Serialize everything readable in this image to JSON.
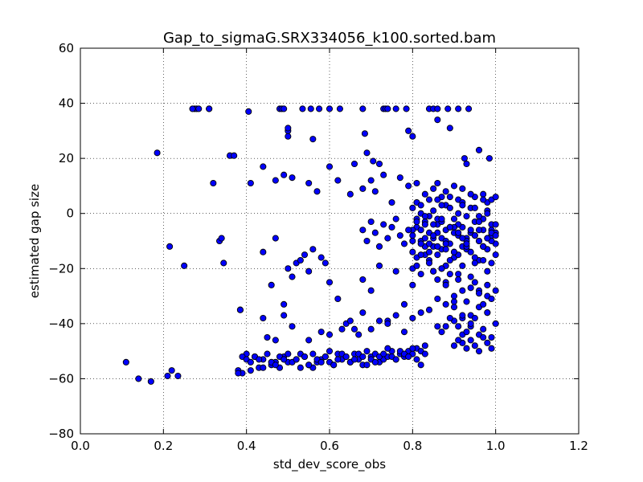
{
  "chart_data": {
    "type": "scatter",
    "title": "Gap_to_sigmaG.SRX334056_k100.sorted.bam",
    "xlabel": "std_dev_score_obs",
    "ylabel": "estimated gap size",
    "xlim": [
      0.0,
      1.2
    ],
    "ylim": [
      -80,
      60
    ],
    "xticks": [
      "0.0",
      "0.2",
      "0.4",
      "0.6",
      "0.8",
      "1.0",
      "1.2"
    ],
    "yticks": [
      "−80",
      "−60",
      "−40",
      "−20",
      "0",
      "20",
      "40",
      "60"
    ],
    "grid": true,
    "marker_color": "#0000ff",
    "marker_edge": "#000000",
    "series": [
      {
        "x": [
          0.11,
          0.14,
          0.17,
          0.21,
          0.22,
          0.235,
          0.275,
          0.28,
          0.31,
          0.36,
          0.385,
          0.38,
          0.39,
          0.4,
          0.41,
          0.42,
          0.43,
          0.44,
          0.46,
          0.47,
          0.48,
          0.49,
          0.5,
          0.52,
          0.53,
          0.54,
          0.55,
          0.56,
          0.57,
          0.58,
          0.59,
          0.6,
          0.61,
          0.62,
          0.63,
          0.64,
          0.65,
          0.66,
          0.67,
          0.68,
          0.69,
          0.7,
          0.71,
          0.72,
          0.73,
          0.74,
          0.75,
          0.76,
          0.77,
          0.78,
          0.79,
          0.8,
          0.81,
          0.82,
          0.83,
          0.185,
          0.27,
          0.285,
          0.31,
          0.37,
          0.405,
          0.48,
          0.485,
          0.49,
          0.5,
          0.535,
          0.555,
          0.575,
          0.6,
          0.625,
          0.68,
          0.73,
          0.735,
          0.74,
          0.76,
          0.785,
          0.84,
          0.85,
          0.86,
          0.885,
          0.91,
          0.935,
          0.5,
          0.5,
          0.56,
          0.66,
          0.685,
          0.69,
          0.705,
          0.72,
          0.79,
          0.8,
          0.86,
          0.89,
          0.925,
          0.93,
          0.96,
          0.985,
          0.32,
          0.41,
          0.44,
          0.47,
          0.49,
          0.51,
          0.55,
          0.57,
          0.6,
          0.62,
          0.65,
          0.68,
          0.7,
          0.71,
          0.73,
          0.75,
          0.77,
          0.79,
          0.81,
          0.83,
          0.85,
          0.86,
          0.87,
          0.88,
          0.9,
          0.91,
          0.92,
          0.95,
          0.97,
          0.98,
          0.99,
          0.215,
          0.25,
          0.335,
          0.34,
          0.345,
          0.385,
          0.44,
          0.45,
          0.47,
          0.49,
          0.5,
          0.51,
          0.52,
          0.53,
          0.54,
          0.55,
          0.56,
          0.58,
          0.59,
          0.6,
          0.62,
          0.64,
          0.66,
          0.67,
          0.68,
          0.7,
          0.72,
          0.74,
          0.76,
          0.78,
          0.8,
          0.82,
          0.84,
          0.86,
          0.88,
          0.9,
          0.92,
          0.94,
          0.96,
          0.98,
          0.44,
          0.46,
          0.47,
          0.49,
          0.51,
          0.55,
          0.58,
          0.6,
          0.63,
          0.65,
          0.68,
          0.7,
          0.72,
          0.74,
          0.76,
          0.78,
          0.8,
          0.82,
          0.84,
          0.86,
          0.88,
          0.9,
          0.92,
          0.94,
          0.96,
          0.98,
          0.38,
          0.39,
          0.4,
          0.41,
          0.42,
          0.43,
          0.44,
          0.45,
          0.46,
          0.47,
          0.48,
          0.49,
          0.5,
          0.51,
          0.52,
          0.53,
          0.54,
          0.55,
          0.56,
          0.57,
          0.58,
          0.59,
          0.6,
          0.61,
          0.62,
          0.63,
          0.64,
          0.65,
          0.66,
          0.67,
          0.68,
          0.69,
          0.7,
          0.71,
          0.72,
          0.73,
          0.74,
          0.75,
          0.76,
          0.77,
          0.78,
          0.79,
          0.8,
          0.81,
          0.82,
          0.83
        ],
        "y": [
          -54,
          -60,
          -61,
          -59,
          -57,
          -59,
          38,
          38,
          38,
          21,
          -35,
          -57,
          -58,
          -51,
          -57,
          -52,
          -56,
          -53,
          -55,
          -54,
          -56,
          -52,
          -54,
          -53,
          -51,
          -52,
          -55,
          -56,
          -54,
          -53,
          -52,
          -54,
          -55,
          -51,
          -53,
          -52,
          -54,
          -51,
          -53,
          -55,
          -50,
          -52,
          -51,
          -54,
          -53,
          -52,
          -50,
          -53,
          -51,
          -52,
          -50,
          -51,
          -49,
          -55,
          -48,
          22,
          38,
          38,
          38,
          21,
          37,
          38,
          38,
          38,
          30,
          38,
          38,
          38,
          38,
          38,
          38,
          38,
          38,
          38,
          38,
          38,
          38,
          38,
          38,
          38,
          38,
          38,
          28,
          31,
          27,
          18,
          29,
          22,
          19,
          18,
          30,
          28,
          34,
          31,
          20,
          18,
          23,
          20,
          11,
          11,
          17,
          12,
          14,
          13,
          11,
          8,
          17,
          12,
          7,
          9,
          12,
          8,
          14,
          4,
          13,
          10,
          11,
          7,
          9,
          11,
          6,
          8,
          10,
          5,
          9,
          6,
          7,
          4,
          5,
          -12,
          -19,
          -10,
          -9,
          -18,
          -35,
          -38,
          -45,
          -9,
          -33,
          -20,
          -23,
          -18,
          -17,
          -15,
          -21,
          -13,
          -16,
          -18,
          -25,
          -31,
          -40,
          -42,
          -44,
          -24,
          -28,
          -19,
          -39,
          -21,
          -33,
          -26,
          -22,
          -17,
          -31,
          -25,
          -34,
          -38,
          -41,
          -28,
          -30,
          -14,
          -26,
          -46,
          -37,
          -41,
          -46,
          -43,
          -44,
          -42,
          -39,
          -36,
          -42,
          -39,
          -40,
          -37,
          -43,
          -38,
          -36,
          -35,
          -41,
          -33,
          -32,
          -44,
          -37,
          -34,
          -36,
          -58,
          -52,
          -53,
          -54,
          -52,
          -53,
          -56,
          -51,
          -54,
          -55,
          -52,
          -53,
          -51,
          -54,
          -53,
          -56,
          -52,
          -55,
          -51,
          -53,
          -54,
          -52,
          -50,
          -55,
          -53,
          -51,
          -52,
          -54,
          -53,
          -51,
          -52,
          -55,
          -53,
          -54,
          -52,
          -51,
          -49,
          -52,
          -53,
          -50,
          -51,
          -52,
          -49,
          -53,
          -50,
          -51
        ]
      },
      {
        "x": [
          0.8,
          0.81,
          0.82,
          0.83,
          0.84,
          0.85,
          0.86,
          0.87,
          0.88,
          0.89,
          0.9,
          0.91,
          0.92,
          0.93,
          0.94,
          0.95,
          0.96,
          0.97,
          0.98,
          0.99,
          1.0,
          0.8,
          0.81,
          0.82,
          0.83,
          0.84,
          0.85,
          0.86,
          0.87,
          0.88,
          0.89,
          0.9,
          0.91,
          0.92,
          0.93,
          0.94,
          0.95,
          0.96,
          0.97,
          0.98,
          0.99,
          1.0,
          0.8,
          0.81,
          0.82,
          0.83,
          0.84,
          0.85,
          0.86,
          0.87,
          0.88,
          0.89,
          0.9,
          0.91,
          0.92,
          0.93,
          0.94,
          0.95,
          0.96,
          0.97,
          0.98,
          0.99,
          1.0,
          0.8,
          0.81,
          0.82,
          0.83,
          0.84,
          0.85,
          0.86,
          0.87,
          0.88,
          0.89,
          0.9,
          0.91,
          0.92,
          0.93,
          0.94,
          0.95,
          0.96,
          0.97,
          0.98,
          0.99,
          1.0,
          0.8,
          0.81,
          0.82,
          0.83,
          0.84,
          0.85,
          0.86,
          0.87,
          0.88,
          0.89,
          0.9,
          0.91,
          0.92,
          0.93,
          0.94,
          0.95,
          0.96,
          0.97,
          0.98,
          0.99,
          1.0,
          0.8,
          0.81,
          0.82,
          0.83,
          0.84,
          0.85,
          0.86,
          0.87,
          0.88,
          0.89,
          0.9,
          0.91,
          0.92,
          0.93,
          0.94,
          0.95,
          0.96,
          0.97,
          0.98,
          0.99,
          1.0,
          0.75,
          0.76,
          0.77,
          0.78,
          0.79,
          0.74,
          0.73,
          0.72,
          0.71,
          0.7,
          0.69,
          0.68,
          0.88,
          0.9,
          0.91,
          0.92,
          0.93,
          0.94,
          0.95,
          0.96,
          0.97,
          0.98,
          0.99,
          1.0,
          0.89,
          0.87,
          0.86,
          0.85,
          0.9,
          0.91,
          0.92,
          0.93,
          0.94,
          0.95,
          0.96,
          0.97,
          0.98,
          0.99,
          1.0,
          0.89,
          0.88,
          0.87,
          0.92,
          0.93,
          0.94,
          0.95,
          0.96,
          0.97,
          0.98,
          0.99,
          0.91,
          0.9
        ],
        "y": [
          -8,
          -5,
          -10,
          -3,
          -7,
          -12,
          -4,
          -9,
          -6,
          -11,
          -2,
          -8,
          -5,
          -13,
          -7,
          -3,
          -10,
          -6,
          -9,
          -4,
          -11,
          -14,
          -2,
          -6,
          -12,
          -1,
          -9,
          -15,
          -3,
          -10,
          -5,
          -16,
          -4,
          -12,
          -1,
          -14,
          -8,
          -17,
          -2,
          -13,
          -6,
          -15,
          2,
          -16,
          0,
          -4,
          -18,
          1,
          -7,
          -13,
          3,
          -17,
          -5,
          0,
          -19,
          -9,
          2,
          -16,
          -3,
          -12,
          1,
          -18,
          -7,
          -20,
          4,
          -11,
          -15,
          5,
          -21,
          -2,
          3,
          -19,
          6,
          -14,
          -22,
          4,
          -10,
          7,
          -18,
          -1,
          5,
          -21,
          -8,
          6,
          -6,
          -19,
          3,
          -9,
          -14,
          -8,
          5,
          -20,
          -11,
          2,
          -7,
          -15,
          3,
          -12,
          -23,
          2,
          -6,
          -17,
          0,
          -10,
          -4,
          -10,
          -3,
          -15,
          -1,
          -11,
          -4,
          -12,
          -2,
          -13,
          -5,
          -14,
          -7,
          -9,
          -11,
          -6,
          -8,
          -10,
          -12,
          -9,
          -7,
          -8,
          -5,
          -2,
          -8,
          -11,
          -6,
          -9,
          -4,
          -12,
          -7,
          -3,
          -10,
          -6,
          -26,
          -30,
          -24,
          -28,
          -32,
          -27,
          -25,
          -29,
          -33,
          -26,
          -31,
          -28,
          -22,
          -20,
          -24,
          -21,
          -39,
          -41,
          -37,
          -43,
          -40,
          -38,
          -44,
          -42,
          -36,
          -45,
          -40,
          -38,
          -41,
          -43,
          -47,
          -49,
          -46,
          -48,
          -50,
          -45,
          -47,
          -49,
          -46,
          -48
        ]
      }
    ]
  }
}
